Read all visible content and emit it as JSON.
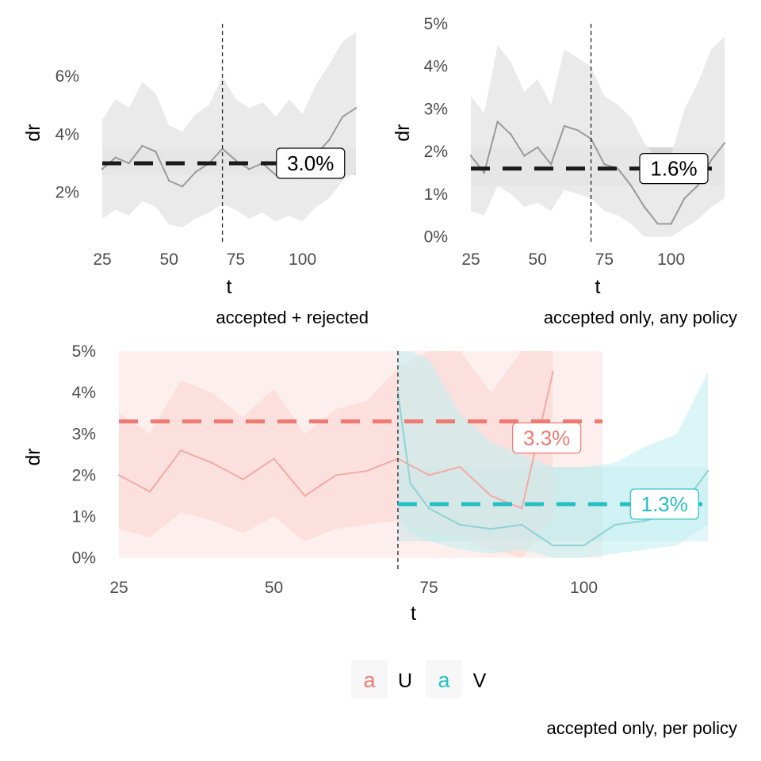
{
  "chart_data": [
    {
      "id": "top-left",
      "type": "line",
      "caption": "accepted + rejected",
      "xlabel": "t",
      "ylabel": "dr",
      "xlim": [
        25,
        120
      ],
      "ylim": [
        0.003,
        0.078
      ],
      "xticks": [
        {
          "v": 25,
          "label": "25"
        },
        {
          "v": 50,
          "label": "50"
        },
        {
          "v": 75,
          "label": "75"
        },
        {
          "v": 100,
          "label": "100"
        }
      ],
      "yticks": [
        {
          "v": 0.02,
          "label": "2%"
        },
        {
          "v": 0.04,
          "label": "4%"
        },
        {
          "v": 0.06,
          "label": "6%"
        }
      ],
      "vline": 70,
      "mean": {
        "value": 0.03,
        "label": "3.0%",
        "label_x": 103,
        "band": [
          0.026,
          0.035
        ],
        "color": "#1a1a1a"
      },
      "series": [
        {
          "color": "#9a9a9a",
          "band_color": "#e8e8e8",
          "x": [
            25,
            30,
            35,
            40,
            45,
            50,
            55,
            60,
            65,
            70,
            75,
            80,
            85,
            90,
            95,
            100,
            105,
            110,
            115,
            120
          ],
          "y": [
            0.028,
            0.032,
            0.03,
            0.036,
            0.034,
            0.024,
            0.022,
            0.027,
            0.03,
            0.035,
            0.031,
            0.028,
            0.03,
            0.026,
            0.029,
            0.025,
            0.033,
            0.038,
            0.046,
            0.049
          ],
          "lo": [
            0.011,
            0.014,
            0.012,
            0.017,
            0.015,
            0.009,
            0.008,
            0.011,
            0.013,
            0.016,
            0.014,
            0.011,
            0.013,
            0.01,
            0.012,
            0.01,
            0.015,
            0.018,
            0.024,
            0.027
          ],
          "hi": [
            0.045,
            0.052,
            0.049,
            0.058,
            0.054,
            0.043,
            0.041,
            0.047,
            0.05,
            0.06,
            0.052,
            0.049,
            0.051,
            0.046,
            0.052,
            0.047,
            0.057,
            0.064,
            0.072,
            0.075
          ]
        }
      ]
    },
    {
      "id": "top-right",
      "type": "line",
      "caption": "accepted only, any policy",
      "xlabel": "t",
      "ylabel": "dr",
      "xlim": [
        25,
        120
      ],
      "ylim": [
        -0.0012,
        0.05
      ],
      "xticks": [
        {
          "v": 25,
          "label": "25"
        },
        {
          "v": 50,
          "label": "50"
        },
        {
          "v": 75,
          "label": "75"
        },
        {
          "v": 100,
          "label": "100"
        }
      ],
      "yticks": [
        {
          "v": 0.0,
          "label": "0%"
        },
        {
          "v": 0.01,
          "label": "1%"
        },
        {
          "v": 0.02,
          "label": "2%"
        },
        {
          "v": 0.03,
          "label": "3%"
        },
        {
          "v": 0.04,
          "label": "4%"
        },
        {
          "v": 0.05,
          "label": "5%"
        }
      ],
      "vline": 70,
      "mean": {
        "value": 0.016,
        "label": "1.6%",
        "label_x": 101,
        "band": [
          0.012,
          0.021
        ],
        "color": "#1a1a1a"
      },
      "series": [
        {
          "color": "#9a9a9a",
          "band_color": "#e8e8e8",
          "x": [
            25,
            30,
            35,
            40,
            45,
            50,
            55,
            60,
            65,
            70,
            75,
            80,
            85,
            90,
            95,
            100,
            105,
            110,
            115,
            120
          ],
          "y": [
            0.019,
            0.015,
            0.027,
            0.024,
            0.019,
            0.021,
            0.017,
            0.026,
            0.025,
            0.023,
            0.017,
            0.016,
            0.012,
            0.007,
            0.003,
            0.003,
            0.009,
            0.012,
            0.018,
            0.022
          ],
          "lo": [
            0.006,
            0.005,
            0.012,
            0.01,
            0.007,
            0.008,
            0.006,
            0.011,
            0.01,
            0.009,
            0.006,
            0.005,
            0.003,
            0.0,
            0.0,
            0.0,
            0.002,
            0.004,
            0.007,
            0.009
          ],
          "hi": [
            0.033,
            0.029,
            0.045,
            0.041,
            0.034,
            0.037,
            0.031,
            0.044,
            0.042,
            0.04,
            0.033,
            0.031,
            0.028,
            0.022,
            0.018,
            0.019,
            0.03,
            0.036,
            0.044,
            0.047
          ]
        }
      ]
    },
    {
      "id": "bottom",
      "type": "line",
      "caption": "accepted only, per policy",
      "xlabel": "t",
      "ylabel": "dr",
      "xlim": [
        25,
        120
      ],
      "ylim": [
        -0.0012,
        0.05
      ],
      "xticks": [
        {
          "v": 25,
          "label": "25"
        },
        {
          "v": 50,
          "label": "50"
        },
        {
          "v": 75,
          "label": "75"
        },
        {
          "v": 100,
          "label": "100"
        }
      ],
      "yticks": [
        {
          "v": 0.0,
          "label": "0%"
        },
        {
          "v": 0.01,
          "label": "1%"
        },
        {
          "v": 0.02,
          "label": "2%"
        },
        {
          "v": 0.03,
          "label": "3%"
        },
        {
          "v": 0.04,
          "label": "4%"
        },
        {
          "v": 0.05,
          "label": "5%"
        }
      ],
      "vline": 70,
      "means": [
        {
          "series": "U",
          "value": 0.033,
          "label": "3.3%",
          "label_x": 94,
          "label_y": 0.029,
          "band": [
            0.0,
            0.052
          ],
          "band_x": [
            25,
            103
          ],
          "color": "#f07a72"
        },
        {
          "series": "V",
          "value": 0.013,
          "label": "1.3%",
          "label_x": 113,
          "label_y": 0.013,
          "band": [
            0.004,
            0.022
          ],
          "band_x": [
            70,
            120
          ],
          "color": "#22c0c4"
        }
      ],
      "series": [
        {
          "name": "U",
          "color": "#f3aaa5",
          "band_color": "#fbd3d0",
          "x": [
            25,
            30,
            35,
            40,
            45,
            50,
            55,
            60,
            65,
            70,
            75,
            80,
            85,
            90,
            95
          ],
          "y": [
            0.02,
            0.016,
            0.026,
            0.023,
            0.019,
            0.024,
            0.015,
            0.02,
            0.021,
            0.024,
            0.02,
            0.022,
            0.015,
            0.012,
            0.045
          ],
          "lo": [
            0.007,
            0.005,
            0.011,
            0.009,
            0.006,
            0.01,
            0.004,
            0.007,
            0.008,
            0.009,
            0.006,
            0.005,
            0.002,
            0.0,
            0.01
          ],
          "hi": [
            0.035,
            0.03,
            0.043,
            0.04,
            0.034,
            0.041,
            0.03,
            0.036,
            0.038,
            0.046,
            0.052,
            0.052,
            0.04,
            0.052,
            0.052
          ]
        },
        {
          "name": "V",
          "color": "#8fd3d3",
          "band_color": "#bfeef0",
          "x": [
            70,
            72,
            75,
            80,
            85,
            90,
            95,
            100,
            105,
            110,
            115,
            120
          ],
          "y": [
            0.04,
            0.018,
            0.012,
            0.008,
            0.007,
            0.008,
            0.003,
            0.003,
            0.008,
            0.009,
            0.011,
            0.021
          ],
          "lo": [
            0.01,
            0.006,
            0.004,
            0.002,
            0.001,
            0.002,
            0.0,
            0.0,
            0.001,
            0.002,
            0.003,
            0.008
          ],
          "hi": [
            0.052,
            0.052,
            0.048,
            0.035,
            0.028,
            0.025,
            0.022,
            0.022,
            0.023,
            0.027,
            0.03,
            0.045
          ]
        }
      ],
      "legend": {
        "items": [
          {
            "glyph": "a",
            "label": "U",
            "color": "#f07a72"
          },
          {
            "glyph": "a",
            "label": "V",
            "color": "#22c0c4"
          }
        ],
        "placement": "bottom"
      }
    }
  ]
}
